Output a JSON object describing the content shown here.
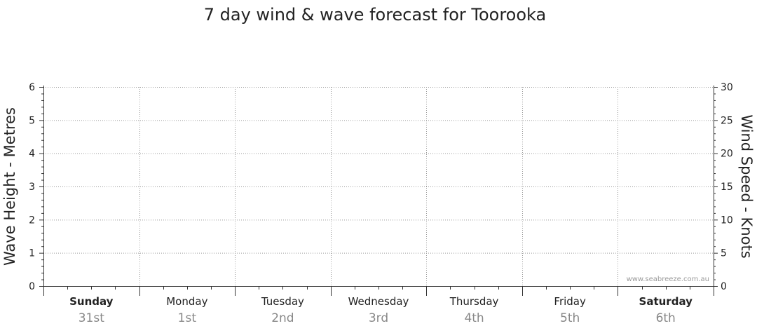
{
  "chart_data": {
    "type": "line",
    "title": "7 day wind & wave forecast for Toorooka",
    "y_left": {
      "label": "Wave Height - Metres",
      "range": [
        0,
        6
      ],
      "ticks": [
        0,
        1,
        2,
        3,
        4,
        5,
        6
      ]
    },
    "y_right": {
      "label": "Wind Speed - Knots",
      "range": [
        0,
        30
      ],
      "ticks": [
        0,
        5,
        10,
        15,
        20,
        25,
        30
      ]
    },
    "days": [
      {
        "name": "Sunday",
        "date": "31st",
        "bold": true
      },
      {
        "name": "Monday",
        "date": "1st",
        "bold": false
      },
      {
        "name": "Tuesday",
        "date": "2nd",
        "bold": false
      },
      {
        "name": "Wednesday",
        "date": "3rd",
        "bold": false
      },
      {
        "name": "Thursday",
        "date": "4th",
        "bold": false
      },
      {
        "name": "Friday",
        "date": "5th",
        "bold": false
      },
      {
        "name": "Saturday",
        "date": "6th",
        "bold": true
      }
    ],
    "grid": true,
    "series": [],
    "watermark": "www.seabreeze.com.au"
  }
}
